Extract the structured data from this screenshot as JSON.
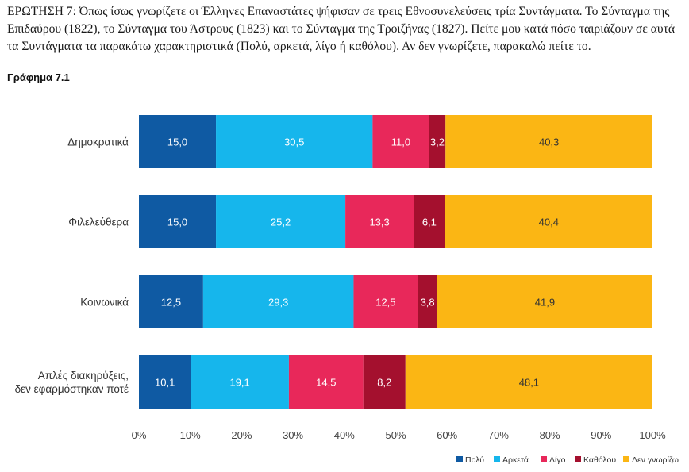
{
  "question_text": "ΕΡΩΤΗΣΗ 7: Όπως ίσως γνωρίζετε οι Έλληνες Επαναστάτες ψήφισαν σε τρεις Εθνοσυνελεύσεις τρία Συντάγματα. Το Σύνταγμα της Επιδαύρου (1822), το Σύνταγμα του Άστρους (1823) και το Σύνταγμα της Τροιζήνας (1827). Πείτε μου κατά πόσο ταιριάζουν σε αυτά τα Συντάγματα τα παρακάτω χαρακτηριστικά (Πολύ, αρκετά, λίγο ή καθόλου). Αν δεν γνωρίζετε, παρακαλώ πείτε το.",
  "chart_title": "Γράφημα 7.1",
  "chart_data": {
    "type": "bar",
    "orientation": "horizontal",
    "stacked": true,
    "categories": [
      [
        "Δημοκρατικά"
      ],
      [
        "Φιλελεύθερα"
      ],
      [
        "Κοινωνικά"
      ],
      [
        "Απλές διακηρύξεις,",
        "δεν εφαρμόστηκαν ποτέ"
      ]
    ],
    "series": [
      {
        "name": "Πολύ",
        "color": "#0f5aa3",
        "values": [
          15.0,
          15.0,
          12.5,
          10.1
        ],
        "labels": [
          "15,0",
          "15,0",
          "12,5",
          "10,1"
        ]
      },
      {
        "name": "Αρκετά",
        "color": "#16b6ec",
        "values": [
          30.5,
          25.2,
          29.3,
          19.1
        ],
        "labels": [
          "30,5",
          "25,2",
          "29,3",
          "19,1"
        ]
      },
      {
        "name": "Λίγο",
        "color": "#e8285a",
        "values": [
          11.0,
          13.3,
          12.5,
          14.5
        ],
        "labels": [
          "11,0",
          "13,3",
          "12,5",
          "14,5"
        ]
      },
      {
        "name": "Καθόλου",
        "color": "#a4102e",
        "values": [
          3.2,
          6.1,
          3.8,
          8.2
        ],
        "labels": [
          "3,2",
          "6,1",
          "3,8",
          "8,2"
        ]
      },
      {
        "name": "Δεν γνωρίζω",
        "color": "#fbb614",
        "values": [
          40.3,
          40.4,
          41.9,
          48.1
        ],
        "labels": [
          "40,3",
          "40,4",
          "41,9",
          "48,1"
        ]
      }
    ],
    "label_colors": [
      "#ffffff",
      "#ffffff",
      "#ffffff",
      "#ffffff",
      "#333333"
    ],
    "xlim": [
      0,
      100
    ],
    "xticks": [
      "0%",
      "10%",
      "20%",
      "30%",
      "40%",
      "50%",
      "60%",
      "70%",
      "80%",
      "90%",
      "100%"
    ],
    "xlabel": "",
    "ylabel": "",
    "grid": false,
    "legend_position": "bottom-right"
  }
}
